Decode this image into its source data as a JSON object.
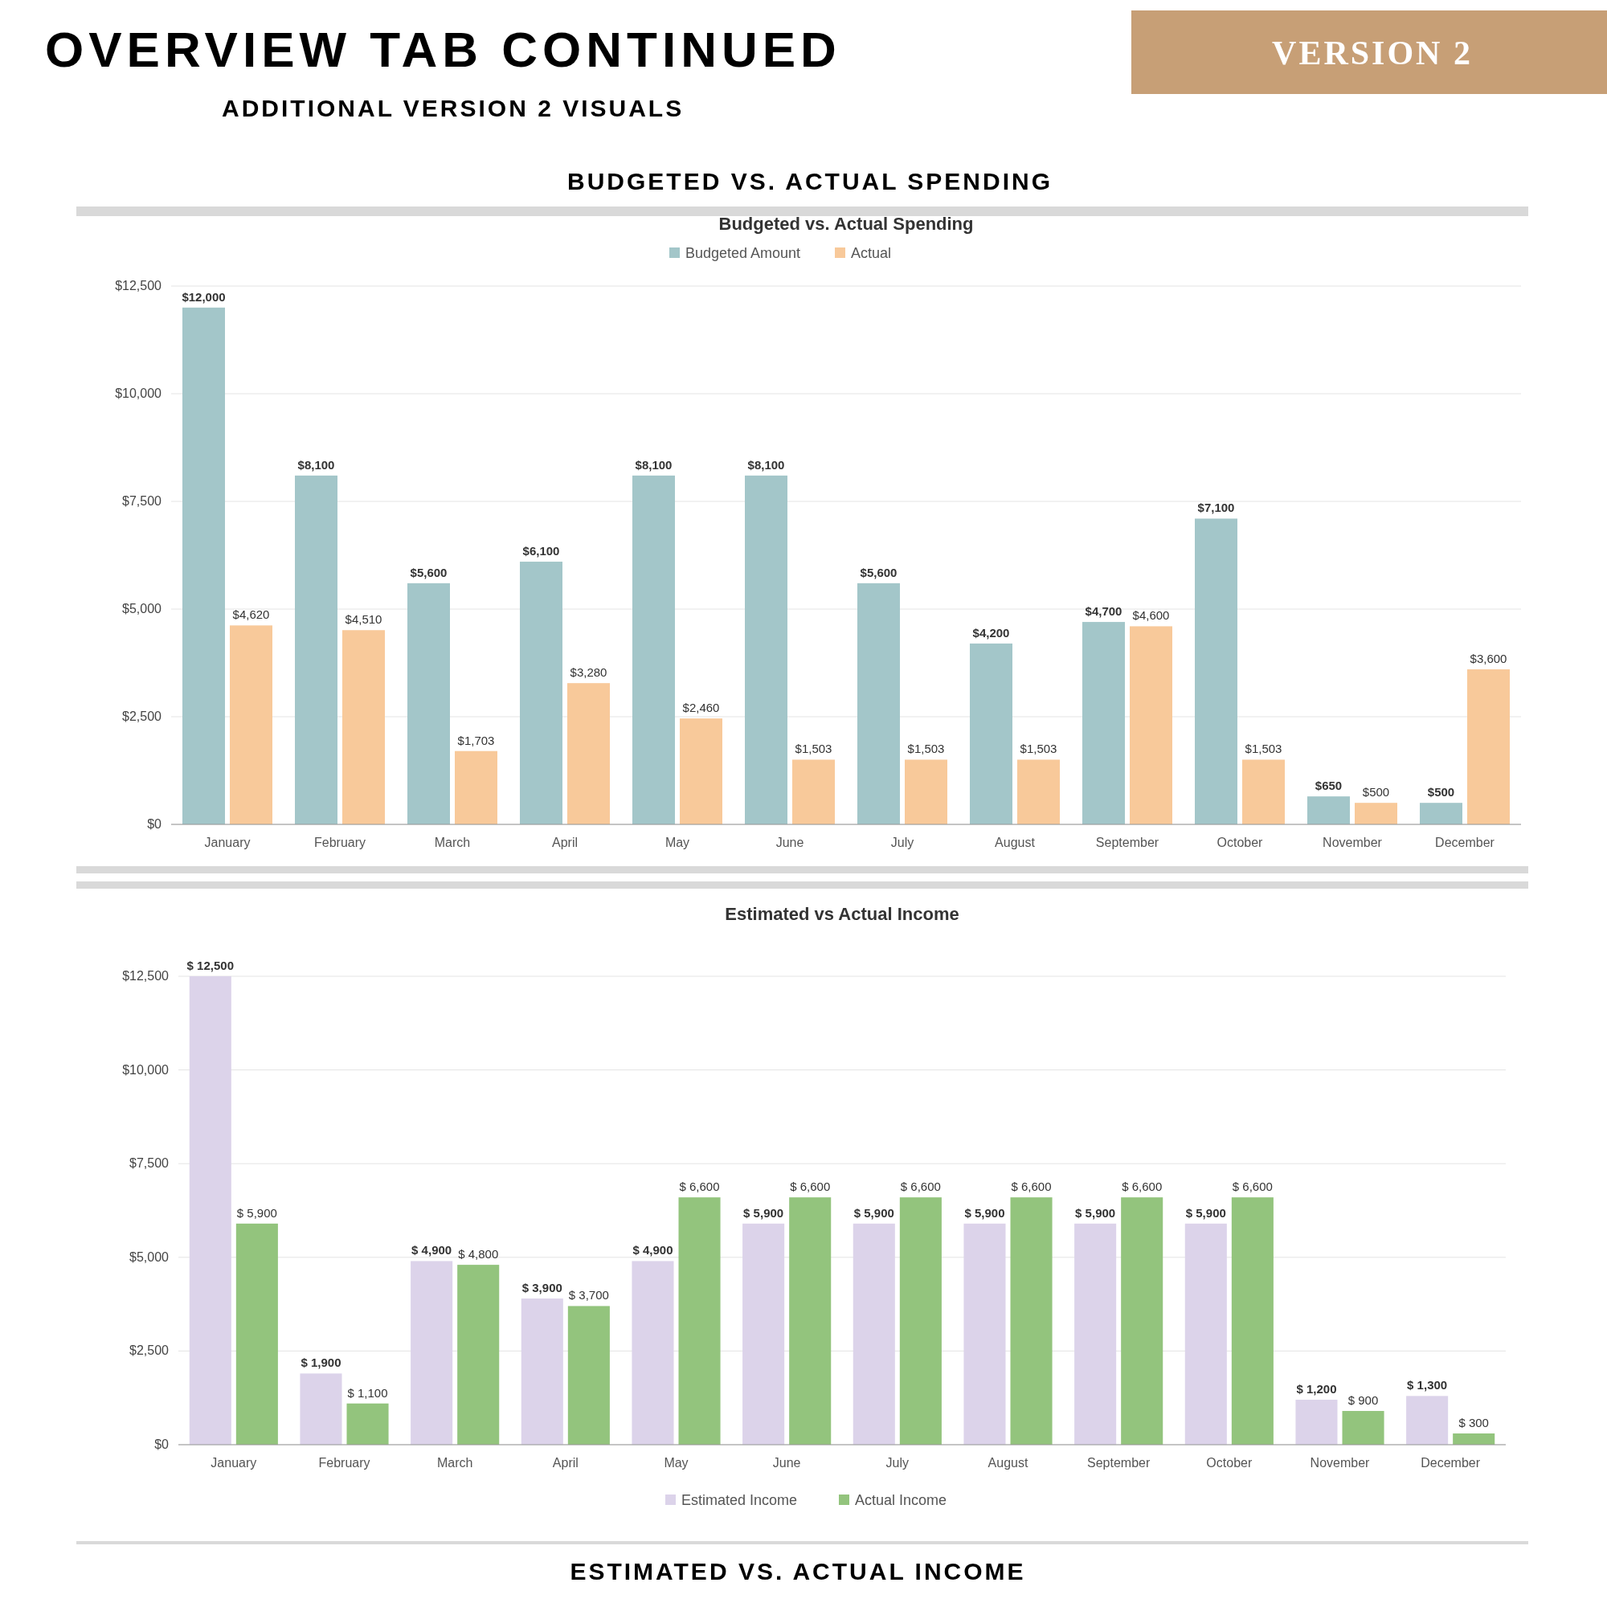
{
  "chart_data": [
    {
      "type": "bar",
      "title": "Budgeted vs. Actual Spending",
      "annotations": [
        "OVERVIEW TAB CONTINUED",
        "ADDITIONAL VERSION 2 VISUALS",
        "VERSION 2",
        "BUDGETED VS. ACTUAL SPENDING"
      ],
      "categories": [
        "January",
        "February",
        "March",
        "April",
        "May",
        "June",
        "July",
        "August",
        "September",
        "October",
        "November",
        "December"
      ],
      "series": [
        {
          "name": "Budgeted Amount",
          "color": "#a3c6c9",
          "values": [
            12000,
            8100,
            5600,
            6100,
            8100,
            8100,
            5600,
            4200,
            4700,
            7100,
            650,
            500
          ],
          "value_labels": [
            "$12,000",
            "$8,100",
            "$5,600",
            "$6,100",
            "$8,100",
            "$8,100",
            "$5,600",
            "$4,200",
            "$4,700",
            "$7,100",
            "$650",
            "$500"
          ]
        },
        {
          "name": "Actual",
          "color": "#f8c99a",
          "values": [
            4620,
            4510,
            1703,
            3280,
            2460,
            1503,
            1503,
            1503,
            4600,
            1503,
            500,
            3600
          ],
          "value_labels": [
            "$4,620",
            "$4,510",
            "$1,703",
            "$3,280",
            "$2,460",
            "$1,503",
            "$1,503",
            "$1,503",
            "$4,600",
            "$1,503",
            "$500",
            "$3,600"
          ]
        }
      ],
      "ylim": [
        0,
        12500
      ],
      "yticks": [
        {
          "value": 0,
          "label": "$0"
        },
        {
          "value": 2500,
          "label": "$2,500"
        },
        {
          "value": 5000,
          "label": "$5,000"
        },
        {
          "value": 7500,
          "label": "$7,500"
        },
        {
          "value": 10000,
          "label": "$10,000"
        },
        {
          "value": 12500,
          "label": "$12,500"
        }
      ],
      "grid": "y",
      "legend": "top"
    },
    {
      "type": "bar",
      "title": "Estimated vs Actual Income",
      "annotations": [
        "ESTIMATED VS. ACTUAL INCOME"
      ],
      "categories": [
        "January",
        "February",
        "March",
        "April",
        "May",
        "June",
        "July",
        "August",
        "September",
        "October",
        "November",
        "December"
      ],
      "series": [
        {
          "name": "Estimated Income",
          "color": "#dcd3ea",
          "values": [
            12500,
            1900,
            4900,
            3900,
            4900,
            5900,
            5900,
            5900,
            5900,
            5900,
            1200,
            1300
          ],
          "value_labels": [
            "$ 12,500",
            "$ 1,900",
            "$ 4,900",
            "$ 3,900",
            "$ 4,900",
            "$ 5,900",
            "$ 5,900",
            "$ 5,900",
            "$ 5,900",
            "$ 5,900",
            "$ 1,200",
            "$ 1,300"
          ]
        },
        {
          "name": "Actual Income",
          "color": "#93c47d",
          "values": [
            5900,
            1100,
            4800,
            3700,
            6600,
            6600,
            6600,
            6600,
            6600,
            6600,
            900,
            300
          ],
          "value_labels": [
            "$ 5,900",
            "$ 1,100",
            "$ 4,800",
            "$ 3,700",
            "$ 6,600",
            "$ 6,600",
            "$ 6,600",
            "$ 6,600",
            "$ 6,600",
            "$ 6,600",
            "$ 900",
            "$ 300"
          ]
        }
      ],
      "ylim": [
        0,
        12500
      ],
      "yticks": [
        {
          "value": 0,
          "label": "$0"
        },
        {
          "value": 2500,
          "label": "$2,500"
        },
        {
          "value": 5000,
          "label": "$5,000"
        },
        {
          "value": 7500,
          "label": "$7,500"
        },
        {
          "value": 10000,
          "label": "$10,000"
        },
        {
          "value": 12500,
          "label": "$12,500"
        }
      ],
      "grid": "y",
      "legend": "bottom"
    }
  ]
}
